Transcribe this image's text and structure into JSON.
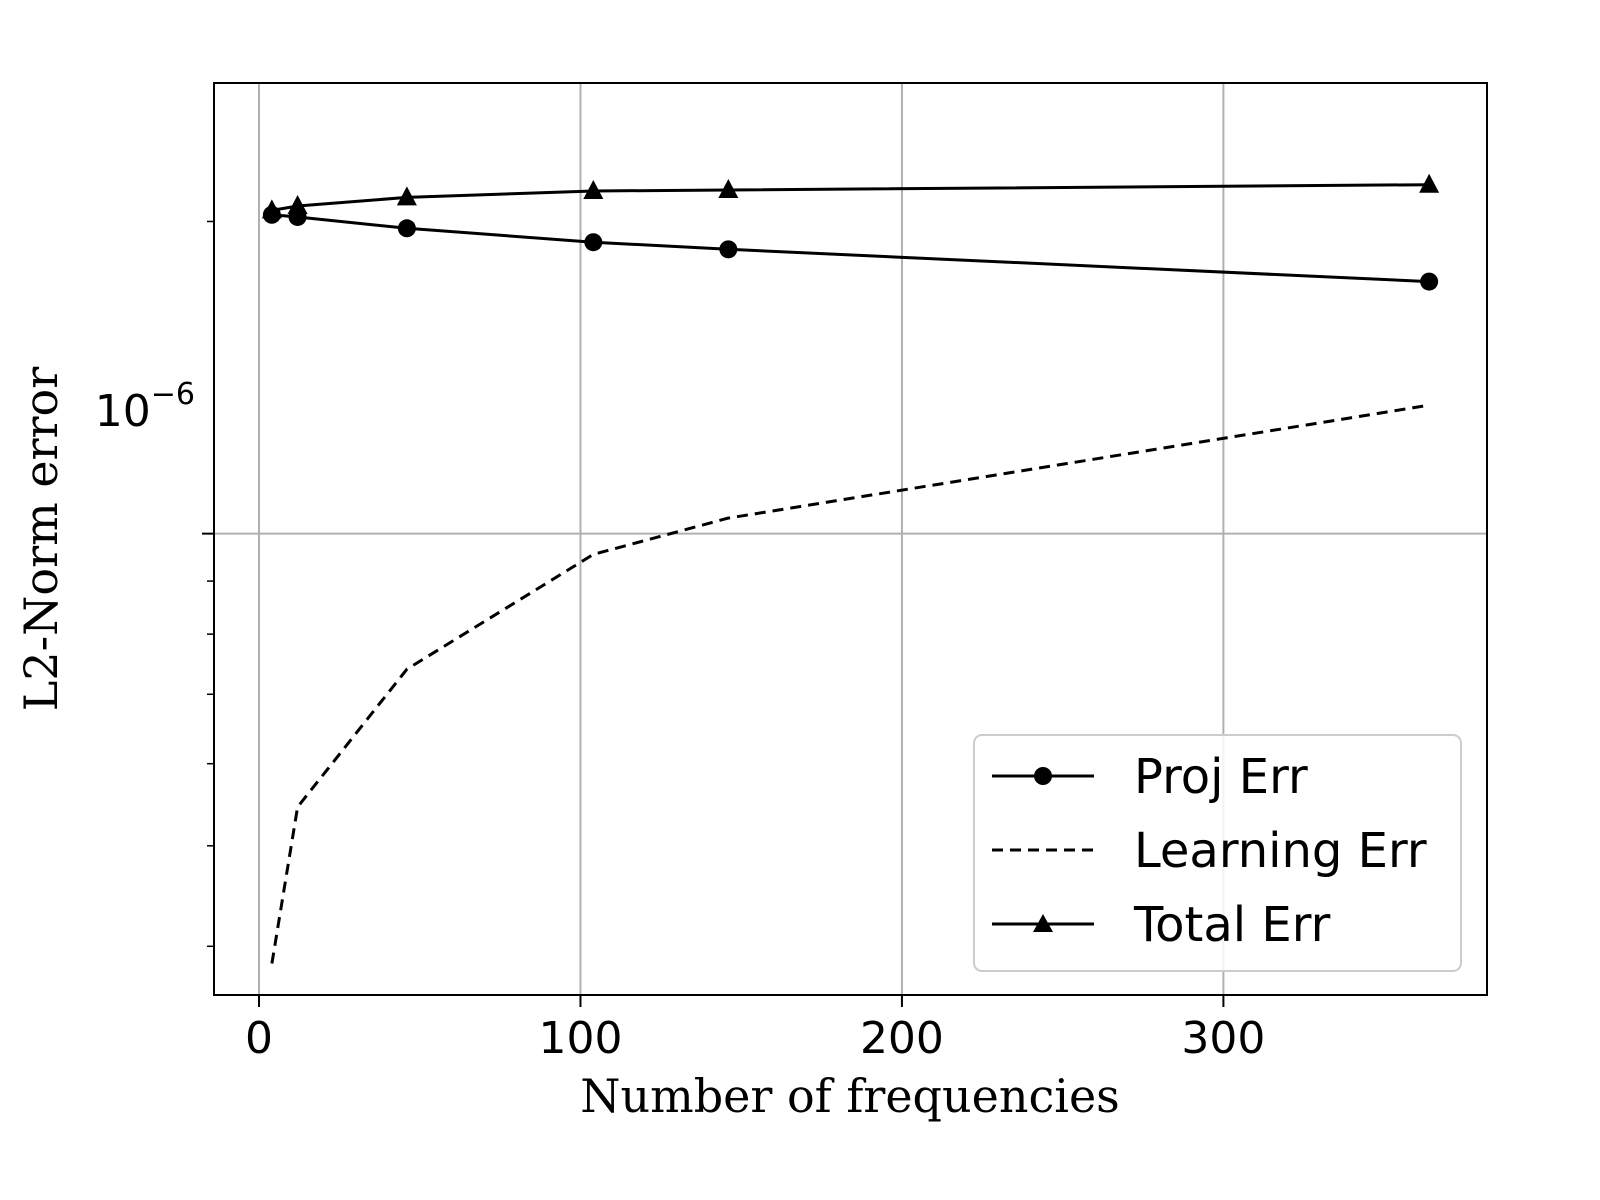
{
  "chart_data": {
    "type": "line",
    "xlabel": "Number of frequencies",
    "ylabel": "L2-Norm error",
    "xlim": [
      -14,
      382
    ],
    "ylim": [
      3.59e-07,
      2.72e-06
    ],
    "yscale": "log",
    "grid": true,
    "legend_position": "lower-right",
    "x_ticks": [
      0,
      100,
      200,
      300
    ],
    "x_tick_labels": [
      "0",
      "100",
      "200",
      "300"
    ],
    "y_major_ticks": [
      1e-06
    ],
    "y_major_tick_labels": [
      "10^{−6}"
    ],
    "y_tick_base": "10",
    "y_tick_exponent": "−6",
    "y_minor_ticks": [
      4e-07,
      5e-07,
      6e-07,
      7e-07,
      8e-07,
      9e-07,
      2e-06
    ],
    "series": [
      {
        "name": "Proj Err",
        "style": "solid",
        "marker": "circle",
        "color": "#000000",
        "x": [
          4,
          12,
          46,
          104,
          146,
          364
        ],
        "y": [
          2.03e-06,
          2.02e-06,
          1.97e-06,
          1.91e-06,
          1.88e-06,
          1.75e-06
        ]
      },
      {
        "name": "Learning Err",
        "style": "dashed",
        "marker": "none",
        "color": "#000000",
        "x": [
          4,
          12,
          46,
          104,
          146,
          364
        ],
        "y": [
          3.85e-07,
          5.45e-07,
          7.4e-07,
          9.55e-07,
          1.035e-06,
          1.33e-06
        ]
      },
      {
        "name": "Total Err",
        "style": "solid",
        "marker": "triangle",
        "color": "#000000",
        "x": [
          4,
          12,
          46,
          104,
          146,
          364
        ],
        "y": [
          2.05e-06,
          2.07e-06,
          2.11e-06,
          2.14e-06,
          2.145e-06,
          2.17e-06
        ]
      }
    ]
  }
}
